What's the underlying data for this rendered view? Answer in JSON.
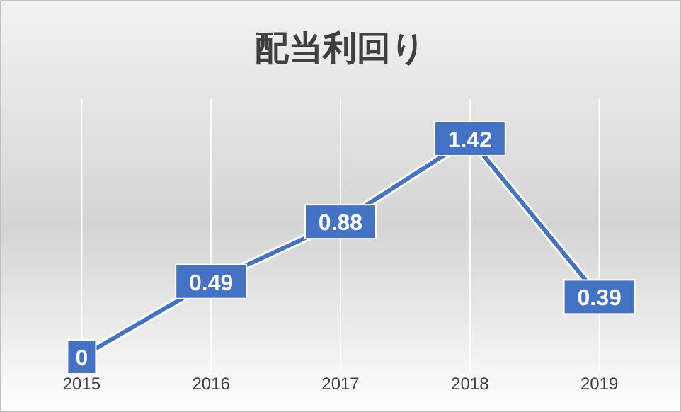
{
  "chart_data": {
    "type": "line",
    "title": "配当利回り",
    "categories": [
      "2015",
      "2016",
      "2017",
      "2018",
      "2019"
    ],
    "series": [
      {
        "color": "#4472c4",
        "values": [
          0,
          0.49,
          0.88,
          1.42,
          0.39
        ]
      }
    ],
    "data_labels": true,
    "grid": "x",
    "line_style": "solid"
  }
}
